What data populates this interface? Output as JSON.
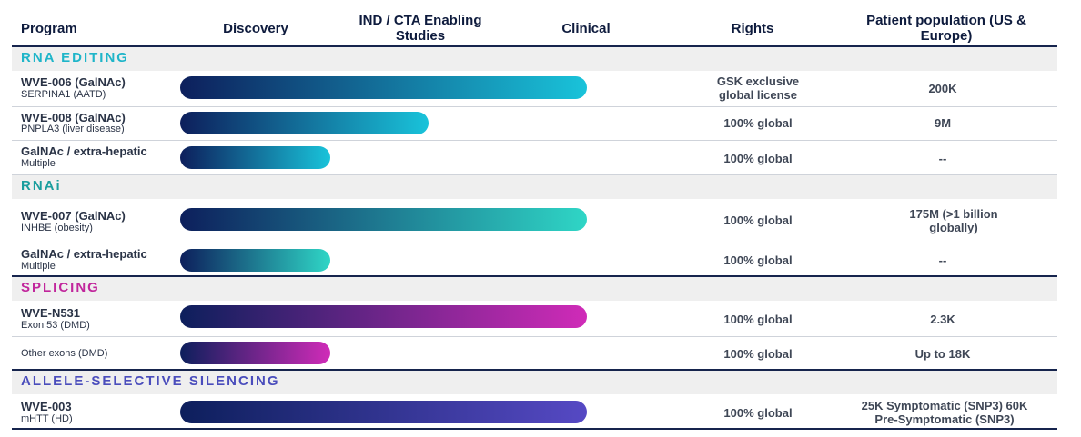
{
  "header": {
    "program": "Program",
    "discovery": "Discovery",
    "ind": "IND / CTA Enabling Studies",
    "clinical": "Clinical",
    "rights": "Rights",
    "population": "Patient population (US & Europe)"
  },
  "sections": [
    {
      "title": "RNA EDITING",
      "color": "#1fb5c9",
      "rows": [
        {
          "name": "WVE-006 (GalNAc)",
          "sub": "SERPINA1 (AATD)",
          "stage_fraction": 1.0,
          "rights": "GSK exclusive global license",
          "population": "200K",
          "bar_start": "#0d1f5c",
          "bar_end": "#19c3da"
        },
        {
          "name": "WVE-008 (GalNAc)",
          "sub": "PNPLA3 (liver disease)",
          "stage_fraction": 0.61,
          "rights": "100% global",
          "population": "9M",
          "bar_start": "#0d1f5c",
          "bar_end": "#19c3da"
        },
        {
          "name": "GalNAc / extra-hepatic",
          "sub": "Multiple",
          "stage_fraction": 0.37,
          "rights": "100% global",
          "population": "--",
          "bar_start": "#0d1f5c",
          "bar_end": "#19c3da"
        }
      ]
    },
    {
      "title": "RNAi",
      "color": "#1a9e9e",
      "rows": [
        {
          "name": "WVE-007 (GalNAc)",
          "sub": "INHBE (obesity)",
          "stage_fraction": 1.0,
          "rights": "100% global",
          "population": "175M (>1 billion globally)",
          "bar_start": "#0d1f5c",
          "bar_end": "#2fd6c6"
        },
        {
          "name": "GalNAc / extra-hepatic",
          "sub": "Multiple",
          "stage_fraction": 0.37,
          "rights": "100% global",
          "population": "--",
          "bar_start": "#0d1f5c",
          "bar_end": "#2fd6c6"
        }
      ]
    },
    {
      "title": "SPLICING",
      "color": "#c1269c",
      "rows": [
        {
          "name": "WVE-N531",
          "sub": "Exon 53 (DMD)",
          "stage_fraction": 1.0,
          "rights": "100% global",
          "population": "2.3K",
          "bar_start": "#0d1f5c",
          "bar_end": "#d02bb8"
        },
        {
          "name": "",
          "sub": "Other exons (DMD)",
          "stage_fraction": 0.37,
          "rights": "100% global",
          "population": "Up to 18K",
          "bar_start": "#0d1f5c",
          "bar_end": "#d02bb8"
        }
      ]
    },
    {
      "title": "ALLELE-SELECTIVE SILENCING",
      "color": "#4a4dbc",
      "rows": [
        {
          "name": "WVE-003",
          "sub": "mHTT (HD)",
          "stage_fraction": 1.0,
          "rights": "100% global",
          "population": "25K Symptomatic (SNP3) 60K Pre-Symptomatic (SNP3)",
          "bar_start": "#0d1f5c",
          "bar_end": "#5649c4"
        }
      ]
    }
  ]
}
